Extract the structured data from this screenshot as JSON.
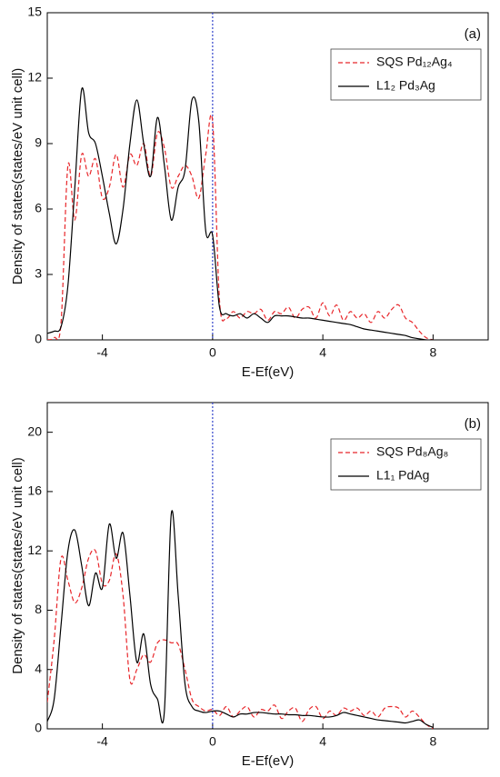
{
  "chart_data": [
    {
      "type": "line",
      "annotation": "(a)",
      "xlabel": "E-Ef(eV)",
      "ylabel": "Density of states(states/eV unit cell)",
      "xlim": [
        -6,
        10
      ],
      "xticks": [
        -4,
        0,
        4,
        8
      ],
      "ylim": [
        0,
        15
      ],
      "yticks": [
        0,
        3,
        6,
        9,
        12,
        15
      ],
      "legend": "upper right",
      "vline": 0,
      "vline_color": "#3344cc",
      "x": [
        -6,
        -5.75,
        -5.5,
        -5.25,
        -5,
        -4.75,
        -4.5,
        -4.25,
        -4,
        -3.75,
        -3.5,
        -3.25,
        -3,
        -2.75,
        -2.5,
        -2.25,
        -2,
        -1.75,
        -1.5,
        -1.25,
        -1,
        -0.75,
        -0.5,
        -0.25,
        0,
        0.25,
        0.5,
        0.75,
        1,
        1.25,
        1.5,
        1.75,
        2,
        2.25,
        2.5,
        2.75,
        3,
        3.25,
        3.5,
        3.75,
        4,
        4.25,
        4.5,
        4.75,
        5,
        5.25,
        5.5,
        5.75,
        6,
        6.25,
        6.5,
        6.75,
        7,
        7.25,
        7.5,
        7.75,
        8
      ],
      "series": [
        {
          "name": "SQS Pd₁₂Ag₄",
          "color": "#e8262a",
          "dash": true,
          "values": [
            0,
            0.1,
            0.8,
            8,
            5.5,
            8.5,
            7.5,
            8.3,
            6.5,
            7,
            8.5,
            7,
            8.5,
            8,
            9,
            7.5,
            9.5,
            8.8,
            7,
            7.5,
            8,
            7.5,
            6.5,
            8.5,
            10,
            1.8,
            1.0,
            1.3,
            1.0,
            1.3,
            1.2,
            1.4,
            0.9,
            1.3,
            1.2,
            1.5,
            1.0,
            1.4,
            1.5,
            1.0,
            1.7,
            1.1,
            1.6,
            0.9,
            1.3,
            1.0,
            1.2,
            0.8,
            1.3,
            1.0,
            1.4,
            1.6,
            1.0,
            0.8,
            0.4,
            0.1,
            0
          ]
        },
        {
          "name": "L1₂ Pd₃Ag",
          "color": "#000000",
          "dash": false,
          "values": [
            0.3,
            0.4,
            0.6,
            2.5,
            7,
            11.5,
            9.5,
            9.0,
            7.5,
            5.8,
            4.4,
            6,
            9,
            11.0,
            9,
            7.5,
            10.2,
            8,
            5.5,
            7,
            7.8,
            11,
            10,
            5,
            4.8,
            1.5,
            1.2,
            1.1,
            1.2,
            1.0,
            1.2,
            1.0,
            0.8,
            1.1,
            1.1,
            1.1,
            1.05,
            1.0,
            1.0,
            0.95,
            0.9,
            0.85,
            0.8,
            0.75,
            0.7,
            0.6,
            0.5,
            0.45,
            0.4,
            0.35,
            0.3,
            0.25,
            0.2,
            0.1,
            0.05,
            0,
            0
          ]
        }
      ]
    },
    {
      "type": "line",
      "annotation": "(b)",
      "xlabel": "E-Ef(eV)",
      "ylabel": "Density of states(states/eV unit cell)",
      "xlim": [
        -6,
        10
      ],
      "xticks": [
        -4,
        0,
        4,
        8
      ],
      "ylim": [
        0,
        22
      ],
      "yticks": [
        0,
        4,
        8,
        12,
        16,
        20
      ],
      "legend": "upper right",
      "vline": 0,
      "vline_color": "#3344cc",
      "x": [
        -6,
        -5.75,
        -5.5,
        -5.25,
        -5,
        -4.75,
        -4.5,
        -4.25,
        -4,
        -3.75,
        -3.5,
        -3.25,
        -3,
        -2.75,
        -2.5,
        -2.25,
        -2,
        -1.75,
        -1.5,
        -1.25,
        -1,
        -0.75,
        -0.5,
        -0.25,
        0,
        0.25,
        0.5,
        0.75,
        1,
        1.25,
        1.5,
        1.75,
        2,
        2.25,
        2.5,
        2.75,
        3,
        3.25,
        3.5,
        3.75,
        4,
        4.25,
        4.5,
        4.75,
        5,
        5.25,
        5.5,
        5.75,
        6,
        6.25,
        6.5,
        6.75,
        7,
        7.25,
        7.5,
        7.75,
        8
      ],
      "series": [
        {
          "name": "SQS Pd₈Ag₈",
          "color": "#e8262a",
          "dash": true,
          "values": [
            1.8,
            6,
            11.5,
            10,
            8.5,
            9.5,
            11.5,
            12,
            9.8,
            10,
            11.8,
            9,
            3.3,
            4,
            5,
            4.5,
            5.8,
            6,
            5.8,
            5.7,
            4,
            2,
            1.5,
            1.2,
            1.3,
            0.9,
            1.5,
            0.8,
            1.2,
            1.5,
            0.8,
            1.3,
            1.2,
            1.6,
            0.7,
            1.2,
            1.4,
            0.5,
            1.3,
            1.5,
            0.7,
            1.2,
            0.9,
            1.4,
            1.2,
            1.4,
            0.9,
            1.2,
            0.8,
            1.4,
            1.5,
            1.4,
            0.8,
            1.2,
            0.8,
            0.3,
            0
          ]
        },
        {
          "name": "L1₁ PdAg",
          "color": "#000000",
          "dash": false,
          "values": [
            0.5,
            2,
            7,
            12,
            13.4,
            11,
            8.3,
            10.5,
            9.5,
            13.8,
            11.5,
            13.2,
            9,
            4.5,
            6.4,
            3,
            2,
            1.2,
            14.5,
            9,
            3,
            1.5,
            1.2,
            1.1,
            1.2,
            1.2,
            1.0,
            0.8,
            1.0,
            1.0,
            1.1,
            1.1,
            1.05,
            1.0,
            1.0,
            0.95,
            0.95,
            0.9,
            0.9,
            0.85,
            0.8,
            0.8,
            0.9,
            1.1,
            1.0,
            0.9,
            0.8,
            0.7,
            0.6,
            0.55,
            0.5,
            0.45,
            0.4,
            0.5,
            0.6,
            0.3,
            0.1
          ]
        }
      ]
    }
  ]
}
